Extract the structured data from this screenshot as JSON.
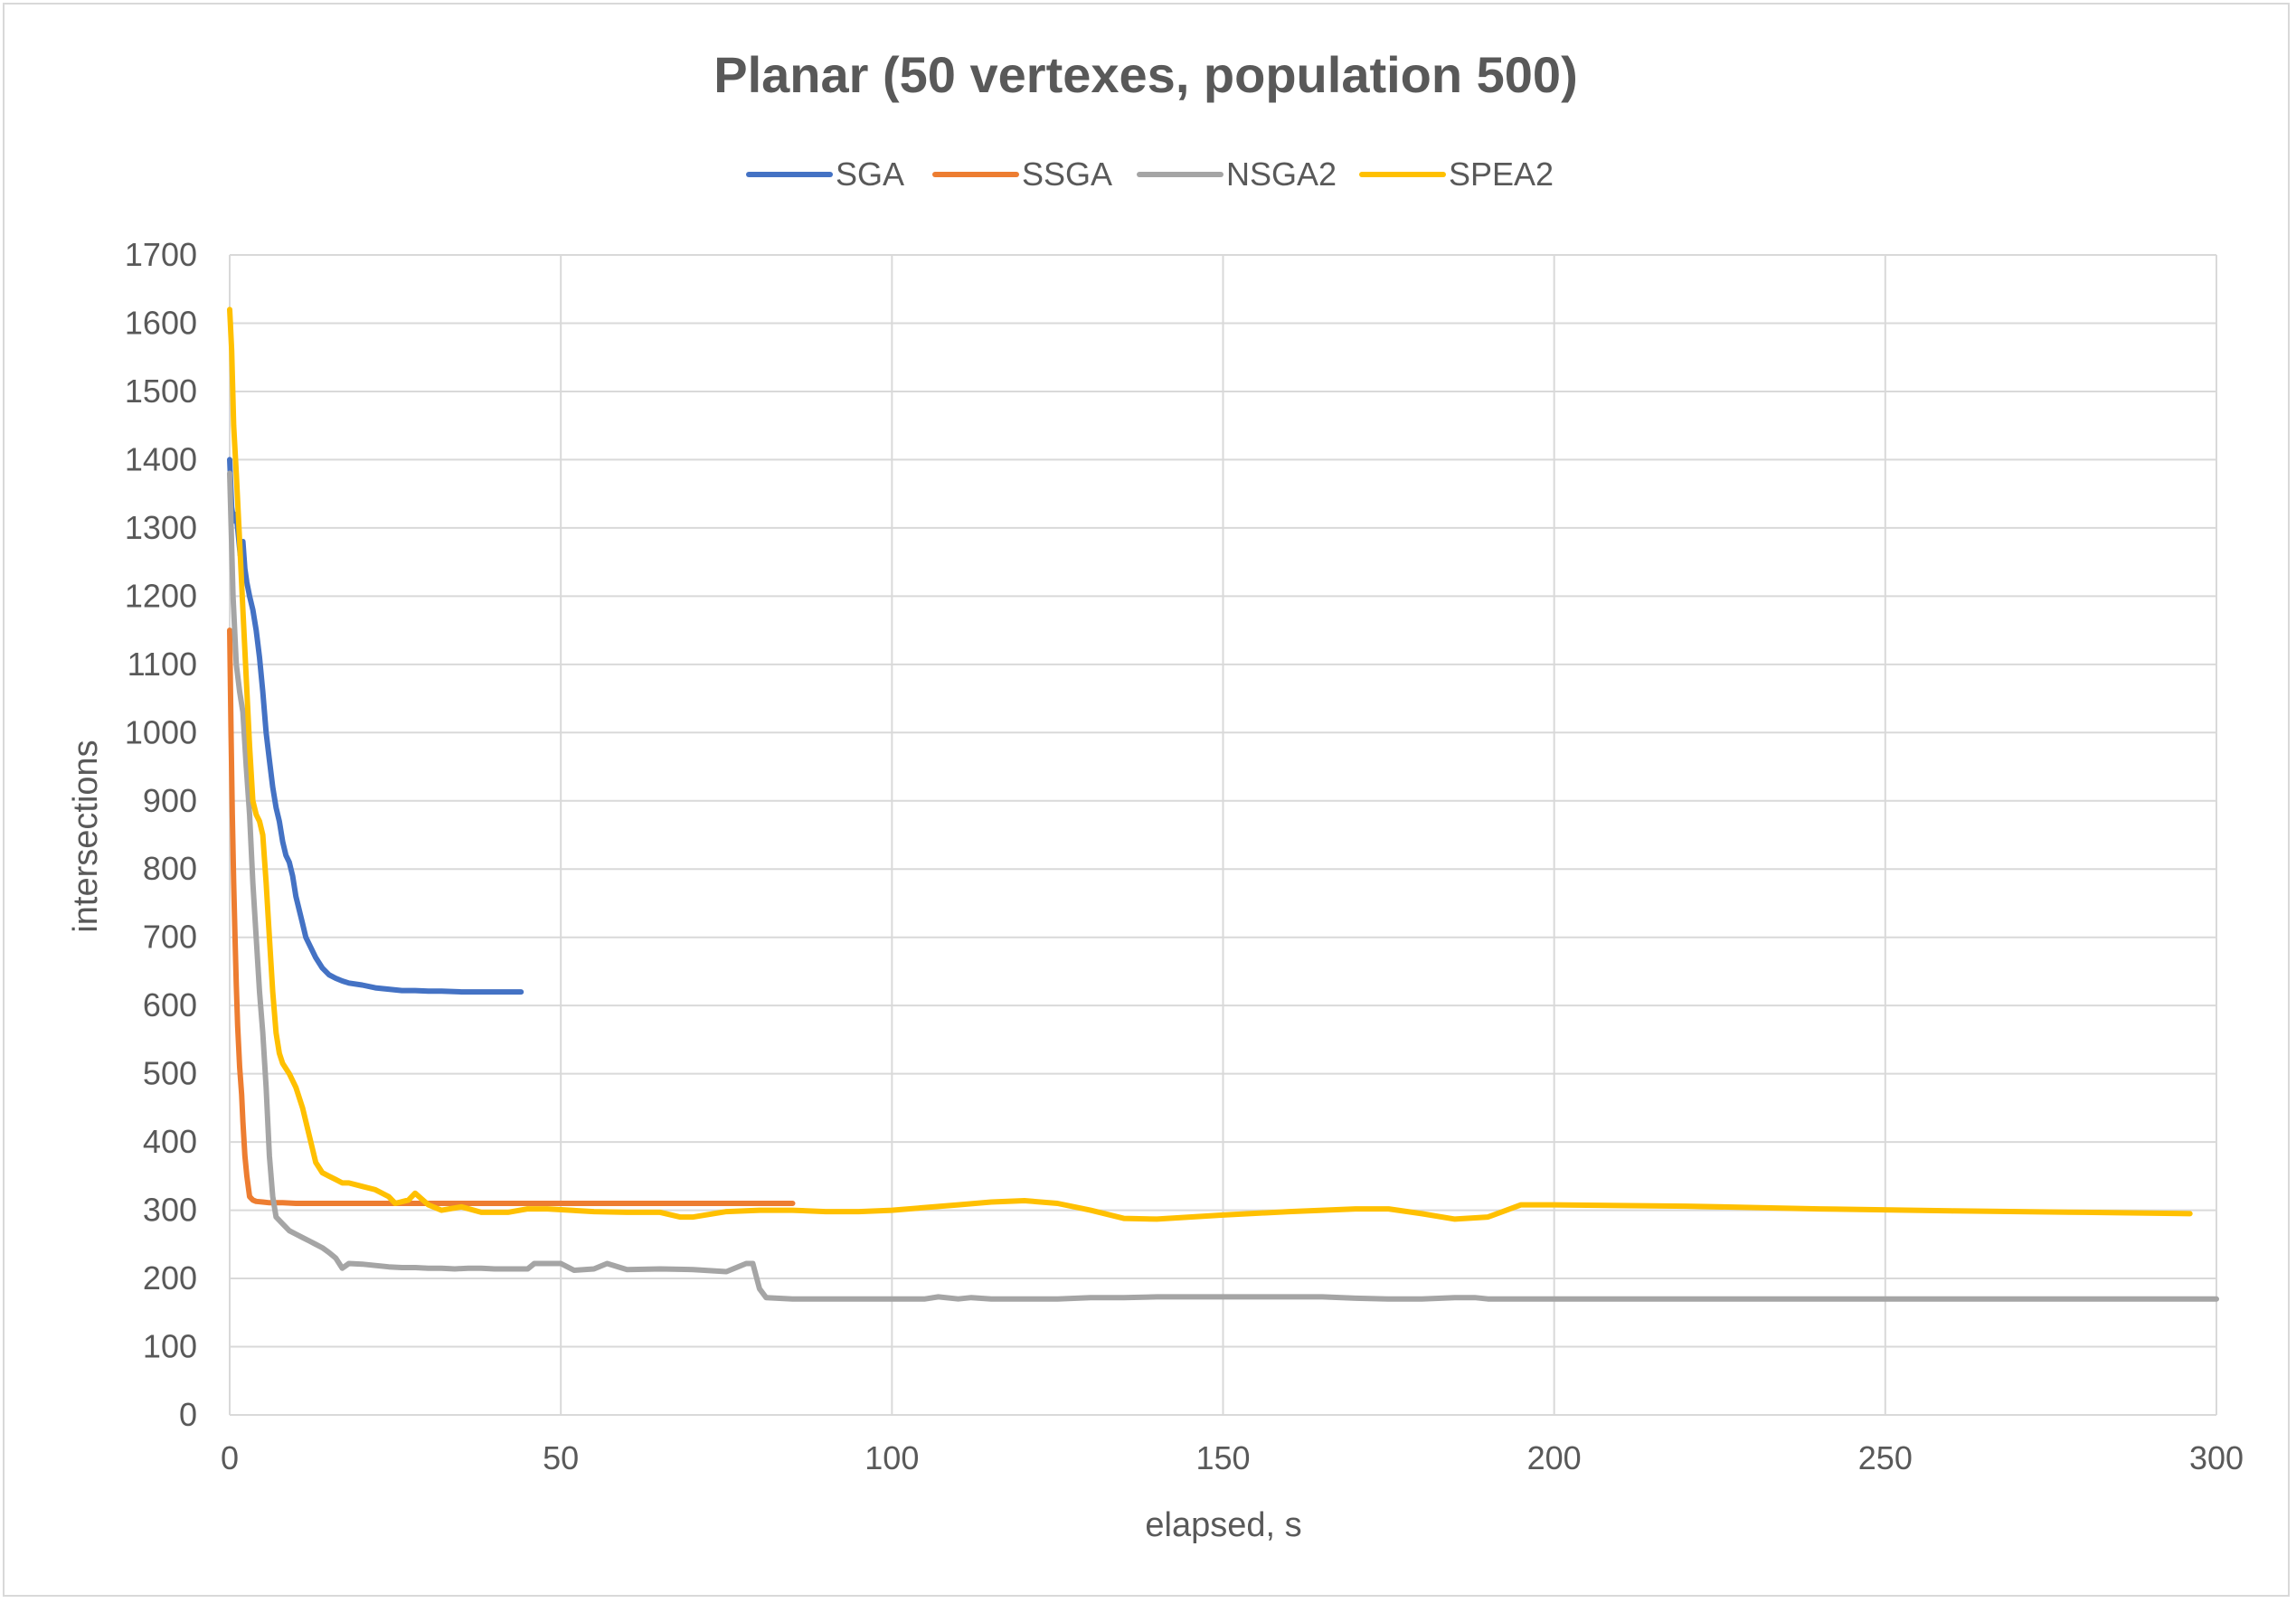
{
  "chart_data": {
    "type": "line",
    "title": "Planar (50 vertexes, population 500)",
    "xlabel": "elapsed, s",
    "ylabel": "intersections",
    "xlim": [
      0,
      300
    ],
    "ylim": [
      0,
      1700
    ],
    "xticks": [
      0,
      50,
      100,
      150,
      200,
      250,
      300
    ],
    "yticks": [
      0,
      100,
      200,
      300,
      400,
      500,
      600,
      700,
      800,
      900,
      1000,
      1100,
      1200,
      1300,
      1400,
      1500,
      1600,
      1700
    ],
    "grid": true,
    "legend_position": "top",
    "series": [
      {
        "name": "SGA",
        "color": "#4472c4",
        "points": [
          [
            0,
            1400
          ],
          [
            0.3,
            1330
          ],
          [
            0.6,
            1310
          ],
          [
            1,
            1320
          ],
          [
            1.3,
            1290
          ],
          [
            1.6,
            1260
          ],
          [
            2,
            1280
          ],
          [
            2.3,
            1240
          ],
          [
            2.6,
            1220
          ],
          [
            3,
            1200
          ],
          [
            3.5,
            1180
          ],
          [
            4,
            1150
          ],
          [
            4.5,
            1110
          ],
          [
            5,
            1060
          ],
          [
            5.5,
            1000
          ],
          [
            6,
            960
          ],
          [
            6.5,
            920
          ],
          [
            7,
            890
          ],
          [
            7.5,
            870
          ],
          [
            8,
            840
          ],
          [
            8.5,
            820
          ],
          [
            9,
            810
          ],
          [
            9.5,
            790
          ],
          [
            10,
            760
          ],
          [
            10.5,
            740
          ],
          [
            11,
            720
          ],
          [
            11.5,
            700
          ],
          [
            12,
            690
          ],
          [
            13,
            670
          ],
          [
            14,
            655
          ],
          [
            15,
            645
          ],
          [
            16,
            640
          ],
          [
            17,
            636
          ],
          [
            18,
            633
          ],
          [
            20,
            630
          ],
          [
            22,
            626
          ],
          [
            24,
            624
          ],
          [
            26,
            622
          ],
          [
            28,
            622
          ],
          [
            30,
            621
          ],
          [
            32,
            621
          ],
          [
            35,
            620
          ],
          [
            38,
            620
          ],
          [
            41,
            620
          ],
          [
            44,
            620
          ]
        ]
      },
      {
        "name": "SSGA",
        "color": "#ed7d31",
        "points": [
          [
            0,
            1150
          ],
          [
            0.2,
            1000
          ],
          [
            0.4,
            880
          ],
          [
            0.6,
            780
          ],
          [
            0.8,
            700
          ],
          [
            1,
            630
          ],
          [
            1.2,
            570
          ],
          [
            1.5,
            510
          ],
          [
            1.8,
            470
          ],
          [
            2,
            430
          ],
          [
            2.3,
            380
          ],
          [
            2.6,
            350
          ],
          [
            3,
            320
          ],
          [
            3.5,
            315
          ],
          [
            4,
            313
          ],
          [
            5,
            312
          ],
          [
            6,
            311
          ],
          [
            8,
            311
          ],
          [
            10,
            310
          ],
          [
            15,
            310
          ],
          [
            20,
            310
          ],
          [
            30,
            310
          ],
          [
            40,
            310
          ],
          [
            50,
            310
          ],
          [
            60,
            310
          ],
          [
            70,
            310
          ],
          [
            80,
            310
          ],
          [
            85,
            310
          ]
        ]
      },
      {
        "name": "NSGA2",
        "color": "#a5a5a5",
        "points": [
          [
            0,
            1380
          ],
          [
            0.5,
            1200
          ],
          [
            1,
            1100
          ],
          [
            1.5,
            1060
          ],
          [
            2,
            1030
          ],
          [
            2.5,
            950
          ],
          [
            3,
            880
          ],
          [
            3.5,
            780
          ],
          [
            4,
            700
          ],
          [
            4.5,
            620
          ],
          [
            5,
            560
          ],
          [
            5.5,
            480
          ],
          [
            6,
            380
          ],
          [
            6.5,
            320
          ],
          [
            7,
            290
          ],
          [
            8,
            280
          ],
          [
            9,
            270
          ],
          [
            10,
            265
          ],
          [
            11,
            260
          ],
          [
            12,
            255
          ],
          [
            13,
            250
          ],
          [
            14,
            245
          ],
          [
            15,
            238
          ],
          [
            16,
            230
          ],
          [
            17,
            215
          ],
          [
            18,
            222
          ],
          [
            20,
            221
          ],
          [
            22,
            219
          ],
          [
            24,
            217
          ],
          [
            26,
            216
          ],
          [
            28,
            216
          ],
          [
            30,
            215
          ],
          [
            32,
            215
          ],
          [
            34,
            214
          ],
          [
            36,
            215
          ],
          [
            38,
            215
          ],
          [
            40,
            214
          ],
          [
            45,
            214
          ],
          [
            46,
            222
          ],
          [
            50,
            222
          ],
          [
            52,
            212
          ],
          [
            55,
            214
          ],
          [
            57,
            222
          ],
          [
            60,
            213
          ],
          [
            65,
            214
          ],
          [
            70,
            213
          ],
          [
            75,
            210
          ],
          [
            78,
            222
          ],
          [
            79,
            222
          ],
          [
            80,
            185
          ],
          [
            81,
            172
          ],
          [
            85,
            170
          ],
          [
            90,
            170
          ],
          [
            95,
            170
          ],
          [
            100,
            170
          ],
          [
            105,
            170
          ],
          [
            107,
            173
          ],
          [
            110,
            170
          ],
          [
            112,
            172
          ],
          [
            115,
            170
          ],
          [
            120,
            170
          ],
          [
            125,
            170
          ],
          [
            130,
            172
          ],
          [
            135,
            172
          ],
          [
            140,
            173
          ],
          [
            145,
            173
          ],
          [
            150,
            173
          ],
          [
            155,
            173
          ],
          [
            160,
            173
          ],
          [
            165,
            173
          ],
          [
            170,
            171
          ],
          [
            175,
            170
          ],
          [
            180,
            170
          ],
          [
            185,
            172
          ],
          [
            188,
            172
          ],
          [
            190,
            170
          ],
          [
            200,
            170
          ],
          [
            210,
            170
          ],
          [
            220,
            170
          ],
          [
            230,
            170
          ],
          [
            240,
            170
          ],
          [
            250,
            170
          ],
          [
            260,
            170
          ],
          [
            270,
            170
          ],
          [
            280,
            170
          ],
          [
            290,
            170
          ],
          [
            300,
            170
          ]
        ]
      },
      {
        "name": "SPEA2",
        "color": "#ffc000",
        "points": [
          [
            0,
            1620
          ],
          [
            0.3,
            1560
          ],
          [
            0.6,
            1450
          ],
          [
            1,
            1380
          ],
          [
            1.5,
            1280
          ],
          [
            2,
            1180
          ],
          [
            2.5,
            1080
          ],
          [
            3,
            980
          ],
          [
            3.5,
            900
          ],
          [
            4,
            880
          ],
          [
            4.5,
            870
          ],
          [
            5,
            850
          ],
          [
            5.5,
            780
          ],
          [
            6,
            700
          ],
          [
            6.5,
            620
          ],
          [
            7,
            560
          ],
          [
            7.5,
            530
          ],
          [
            8,
            515
          ],
          [
            9,
            500
          ],
          [
            10,
            480
          ],
          [
            11,
            450
          ],
          [
            12,
            410
          ],
          [
            13,
            370
          ],
          [
            14,
            355
          ],
          [
            15,
            350
          ],
          [
            16,
            345
          ],
          [
            17,
            340
          ],
          [
            18,
            340
          ],
          [
            20,
            335
          ],
          [
            22,
            330
          ],
          [
            24,
            320
          ],
          [
            25,
            310
          ],
          [
            27,
            315
          ],
          [
            28,
            325
          ],
          [
            30,
            308
          ],
          [
            32,
            300
          ],
          [
            35,
            305
          ],
          [
            38,
            297
          ],
          [
            42,
            297
          ],
          [
            45,
            302
          ],
          [
            48,
            302
          ],
          [
            55,
            298
          ],
          [
            60,
            297
          ],
          [
            65,
            297
          ],
          [
            68,
            290
          ],
          [
            70,
            290
          ],
          [
            75,
            298
          ],
          [
            80,
            300
          ],
          [
            85,
            300
          ],
          [
            90,
            298
          ],
          [
            95,
            298
          ],
          [
            100,
            300
          ],
          [
            110,
            308
          ],
          [
            115,
            312
          ],
          [
            120,
            314
          ],
          [
            125,
            310
          ],
          [
            130,
            300
          ],
          [
            135,
            288
          ],
          [
            140,
            287
          ],
          [
            145,
            290
          ],
          [
            150,
            293
          ],
          [
            160,
            298
          ],
          [
            170,
            302
          ],
          [
            175,
            302
          ],
          [
            180,
            295
          ],
          [
            185,
            287
          ],
          [
            190,
            290
          ],
          [
            195,
            308
          ],
          [
            200,
            308
          ],
          [
            220,
            306
          ],
          [
            240,
            302
          ],
          [
            260,
            299
          ],
          [
            280,
            297
          ],
          [
            296,
            295
          ]
        ]
      }
    ]
  }
}
